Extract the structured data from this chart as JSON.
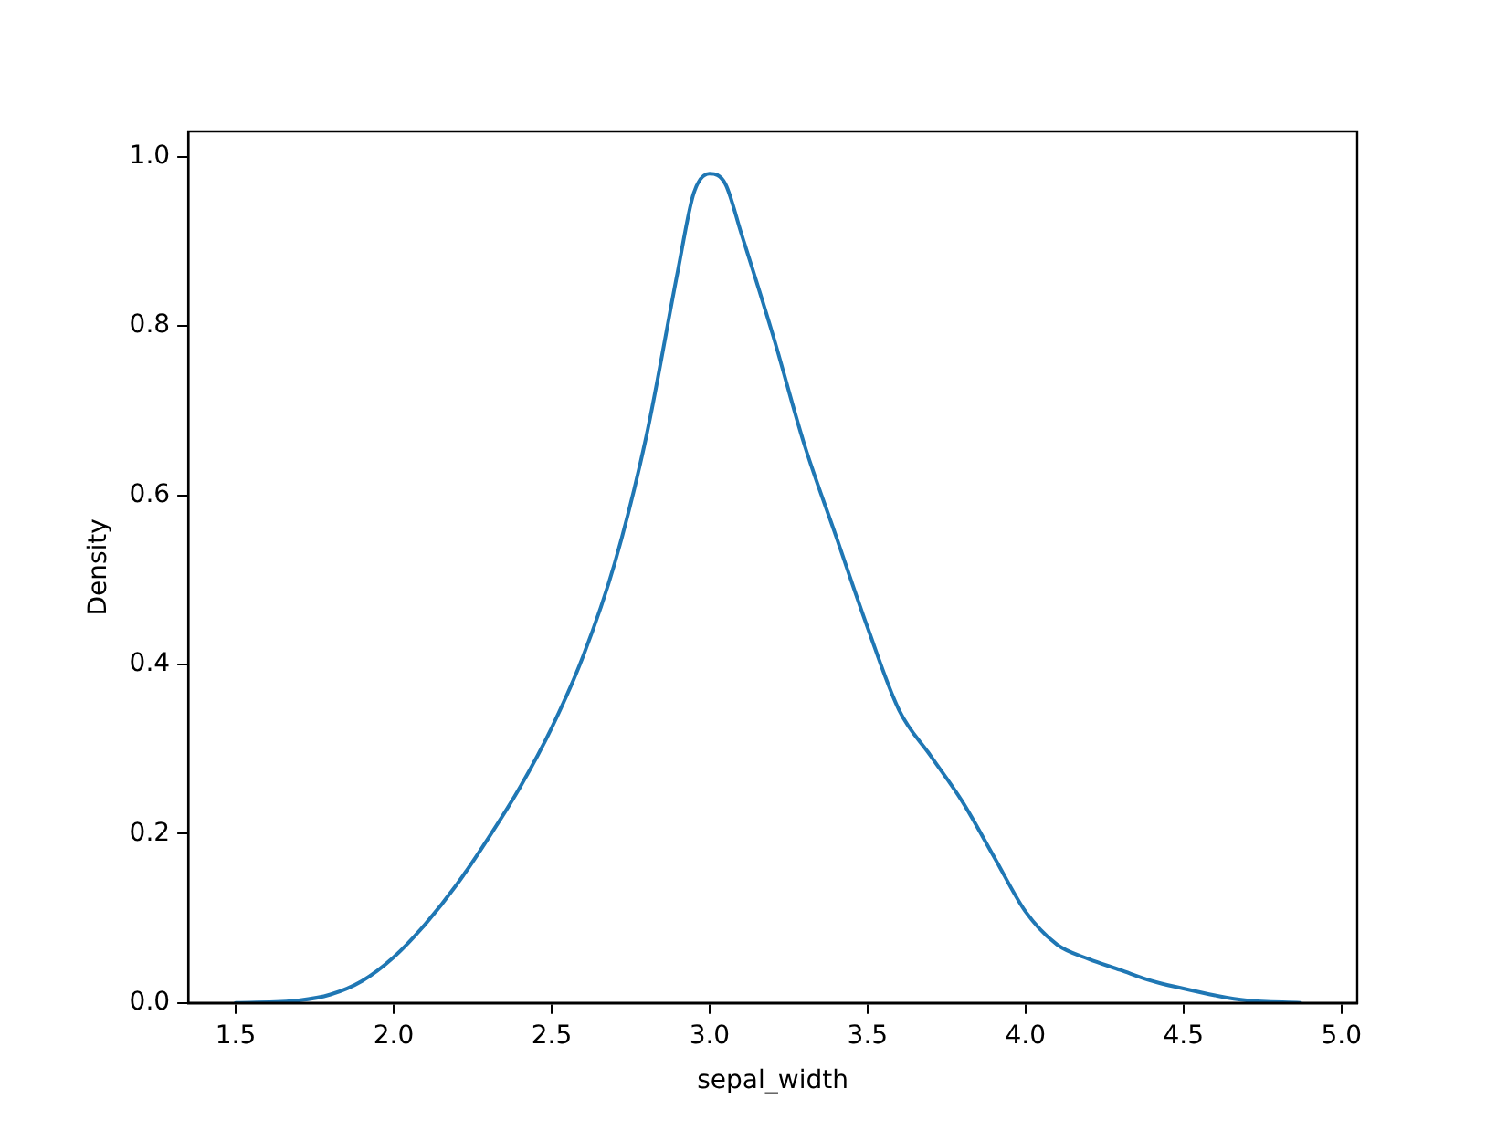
{
  "chart_data": {
    "type": "line",
    "xlabel": "sepal_width",
    "ylabel": "Density",
    "x": [
      1.5,
      1.7,
      1.8,
      1.9,
      2.0,
      2.1,
      2.2,
      2.3,
      2.4,
      2.5,
      2.6,
      2.7,
      2.8,
      2.9,
      2.95,
      3.0,
      3.05,
      3.1,
      3.2,
      3.3,
      3.4,
      3.5,
      3.6,
      3.7,
      3.8,
      3.9,
      4.0,
      4.1,
      4.2,
      4.3,
      4.4,
      4.5,
      4.6,
      4.7,
      4.87
    ],
    "series": [
      {
        "color": "#1f77b4",
        "values": [
          0,
          0.003,
          0.01,
          0.026,
          0.054,
          0.093,
          0.14,
          0.195,
          0.255,
          0.325,
          0.41,
          0.52,
          0.67,
          0.866,
          0.957,
          0.98,
          0.968,
          0.91,
          0.79,
          0.66,
          0.552,
          0.444,
          0.346,
          0.292,
          0.238,
          0.173,
          0.108,
          0.069,
          0.052,
          0.039,
          0.026,
          0.017,
          0.009,
          0.003,
          0
        ]
      }
    ],
    "xlim": [
      1.35,
      5.05
    ],
    "xticks": [
      1.5,
      {
        "value": 2,
        "label": "2.0"
      },
      2.5,
      {
        "value": 3,
        "label": "3.0"
      },
      3.5,
      {
        "value": 4,
        "label": "4.0"
      },
      4.5,
      {
        "value": 5,
        "label": "5.0"
      }
    ],
    "ylim": [
      0,
      1.03
    ],
    "yticks": [
      {
        "value": 0,
        "label": "0.0"
      },
      0.2,
      0.4,
      0.6,
      0.8,
      {
        "value": 1,
        "label": "1.0"
      }
    ],
    "grid": false,
    "legend": false,
    "marker": "none",
    "line_style": "solid"
  }
}
